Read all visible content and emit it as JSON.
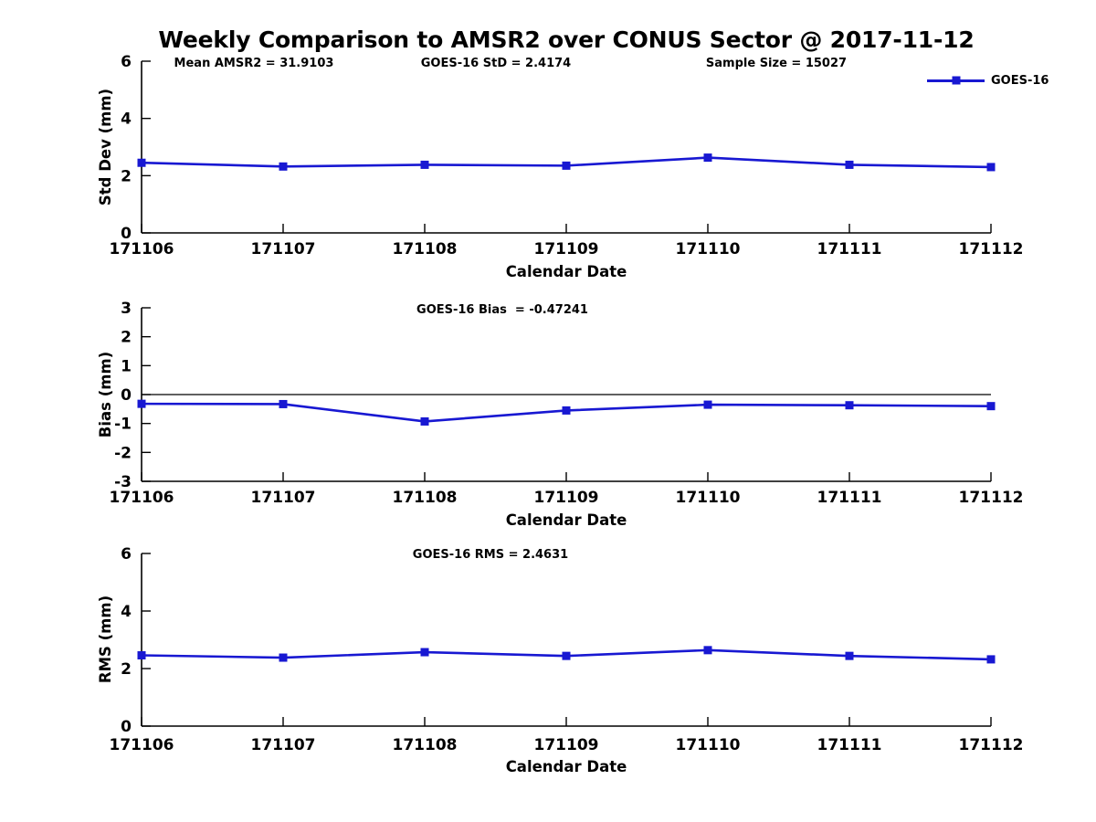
{
  "title": "Weekly Comparison to AMSR2 over CONUS Sector @ 2017-11-12",
  "legend": {
    "label": "GOES-16"
  },
  "colors": {
    "series": "#1818d2",
    "axis": "#000000",
    "zero_line": "#000000",
    "background": "#ffffff",
    "text": "#000000"
  },
  "chart_data": [
    {
      "type": "line",
      "panel": "std-dev",
      "xlabel": "Calendar Date",
      "ylabel": "Std Dev (mm)",
      "categories": [
        "171106",
        "171107",
        "171108",
        "171109",
        "171110",
        "171111",
        "171112"
      ],
      "series": [
        {
          "name": "GOES-16",
          "marker": "square",
          "values": [
            2.45,
            2.32,
            2.38,
            2.35,
            2.63,
            2.38,
            2.3
          ]
        }
      ],
      "ylim": [
        0,
        6
      ],
      "yticks": [
        0,
        2,
        4,
        6
      ],
      "zero_line": false,
      "grid": false,
      "legend_position": "top-right",
      "annotations": [
        "Mean AMSR2 = 31.9103",
        "GOES-16 StD = 2.4174",
        "Sample Size = 15027"
      ]
    },
    {
      "type": "line",
      "panel": "bias",
      "xlabel": "Calendar Date",
      "ylabel": "Bias (mm)",
      "categories": [
        "171106",
        "171107",
        "171108",
        "171109",
        "171110",
        "171111",
        "171112"
      ],
      "series": [
        {
          "name": "GOES-16",
          "marker": "square",
          "values": [
            -0.32,
            -0.33,
            -0.93,
            -0.55,
            -0.35,
            -0.37,
            -0.4
          ]
        }
      ],
      "ylim": [
        -3,
        3
      ],
      "yticks": [
        -3,
        -2,
        -1,
        0,
        1,
        2,
        3
      ],
      "zero_line": true,
      "grid": false,
      "legend_position": "none",
      "annotations": [
        "GOES-16 Bias  = -0.47241"
      ]
    },
    {
      "type": "line",
      "panel": "rms",
      "xlabel": "Calendar Date",
      "ylabel": "RMS (mm)",
      "categories": [
        "171106",
        "171107",
        "171108",
        "171109",
        "171110",
        "171111",
        "171112"
      ],
      "series": [
        {
          "name": "GOES-16",
          "marker": "square",
          "values": [
            2.46,
            2.38,
            2.57,
            2.44,
            2.64,
            2.44,
            2.32
          ]
        }
      ],
      "ylim": [
        0,
        6
      ],
      "yticks": [
        0,
        2,
        4,
        6
      ],
      "zero_line": false,
      "grid": false,
      "legend_position": "none",
      "annotations": [
        "GOES-16 RMS = 2.4631"
      ]
    }
  ]
}
